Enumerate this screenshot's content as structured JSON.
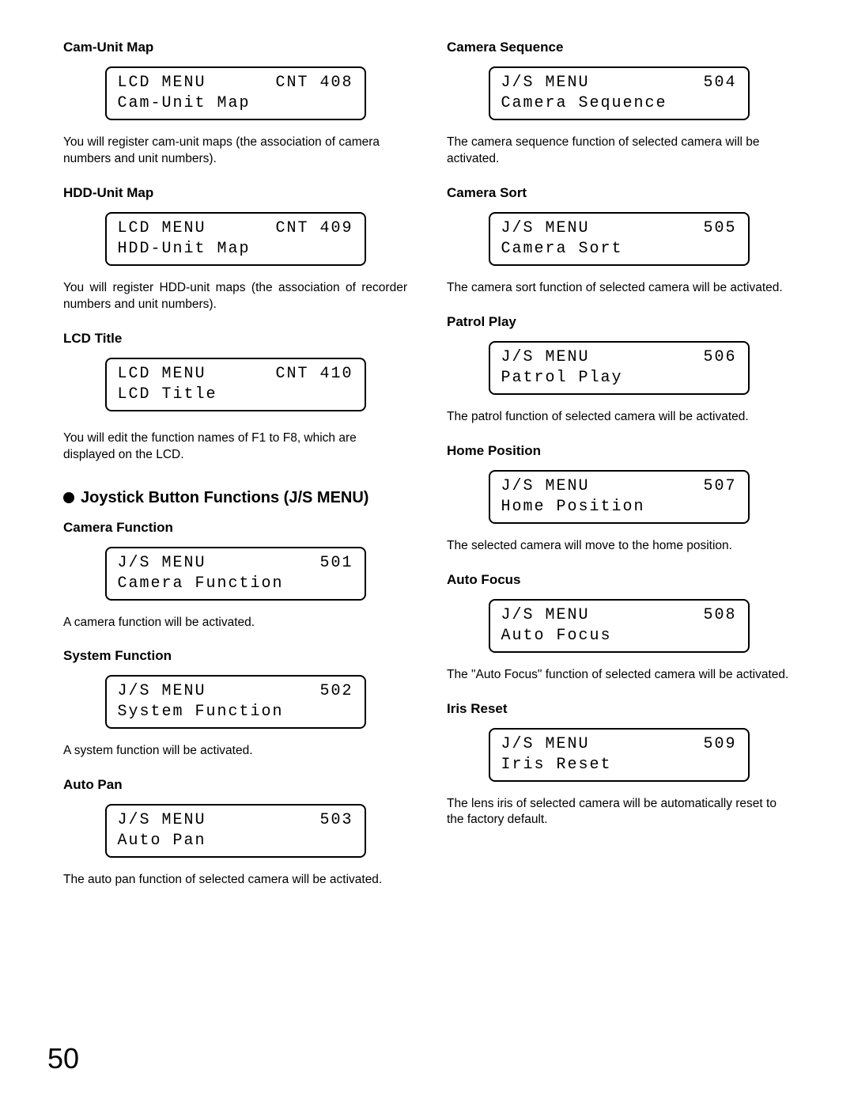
{
  "page_number": "50",
  "left": {
    "cam_unit_map": {
      "title": "Cam-Unit Map",
      "lcd_left1": "LCD MENU",
      "lcd_right1": "CNT 408",
      "lcd_left2": "Cam-Unit Map",
      "desc": "You will register cam-unit maps (the association of camera numbers and unit numbers)."
    },
    "hdd_unit_map": {
      "title": "HDD-Unit Map",
      "lcd_left1": "LCD MENU",
      "lcd_right1": "CNT 409",
      "lcd_left2": "HDD-Unit Map",
      "desc": "You will register HDD-unit maps (the association of recorder numbers and unit numbers)."
    },
    "lcd_title": {
      "title": "LCD Title",
      "lcd_left1": "LCD MENU",
      "lcd_right1": "CNT 410",
      "lcd_left2": "LCD Title",
      "desc": "You will edit the function names of F1 to F8, which are displayed on the LCD."
    },
    "big_heading": "Joystick Button Functions (J/S MENU)",
    "camera_function": {
      "title": "Camera Function",
      "lcd_left1": "J/S MENU",
      "lcd_right1": "501",
      "lcd_left2": "Camera Function",
      "desc": "A camera function will be activated."
    },
    "system_function": {
      "title": "System Function",
      "lcd_left1": "J/S MENU",
      "lcd_right1": "502",
      "lcd_left2": "System Function",
      "desc": "A system function will be activated."
    },
    "auto_pan": {
      "title": "Auto Pan",
      "lcd_left1": "J/S MENU",
      "lcd_right1": "503",
      "lcd_left2": "Auto Pan",
      "desc": "The auto pan function of selected camera will be activated."
    }
  },
  "right": {
    "camera_sequence": {
      "title": "Camera Sequence",
      "lcd_left1": "J/S MENU",
      "lcd_right1": "504",
      "lcd_left2": "Camera Sequence",
      "desc": "The camera sequence function of selected camera will be activated."
    },
    "camera_sort": {
      "title": "Camera Sort",
      "lcd_left1": "J/S MENU",
      "lcd_right1": "505",
      "lcd_left2": "Camera Sort",
      "desc": "The camera sort function of selected camera will be activated."
    },
    "patrol_play": {
      "title": "Patrol Play",
      "lcd_left1": "J/S MENU",
      "lcd_right1": "506",
      "lcd_left2": "Patrol Play",
      "desc": "The patrol function of selected camera will be activated."
    },
    "home_position": {
      "title": "Home Position",
      "lcd_left1": "J/S MENU",
      "lcd_right1": "507",
      "lcd_left2": "Home Position",
      "desc": "The selected camera will move to the home position."
    },
    "auto_focus": {
      "title": "Auto Focus",
      "lcd_left1": "J/S MENU",
      "lcd_right1": "508",
      "lcd_left2": "Auto Focus",
      "desc": "The \"Auto Focus\" function of selected camera will be activated."
    },
    "iris_reset": {
      "title": "Iris Reset",
      "lcd_left1": "J/S MENU",
      "lcd_right1": "509",
      "lcd_left2": "Iris Reset",
      "desc": "The lens iris of selected camera will be automatically reset to the factory default."
    }
  }
}
